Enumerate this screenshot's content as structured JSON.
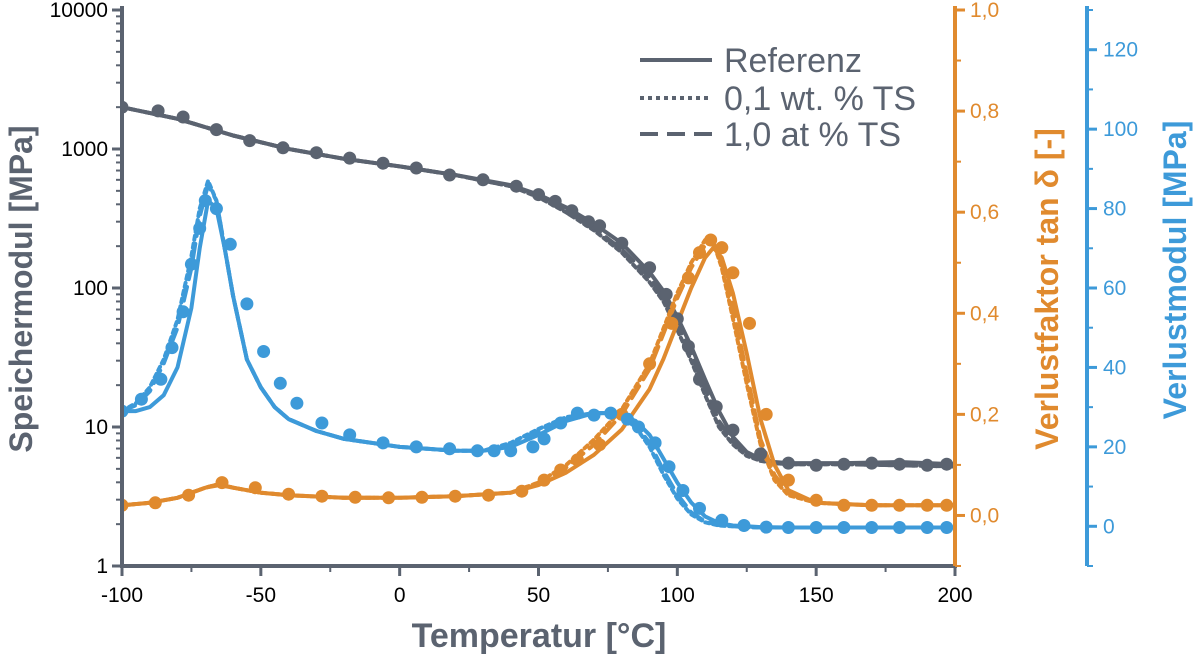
{
  "chart_data": {
    "type": "line",
    "xlabel": "Temperatur [°C]",
    "x_ticks": [
      "-100",
      "-50",
      "0",
      "50",
      "100",
      "150",
      "200"
    ],
    "xlim": [
      -100,
      200
    ],
    "axes": {
      "storage": {
        "label": "Speichermodul [MPa]",
        "scale": "log",
        "ylim": [
          1,
          10000
        ],
        "ticks": [
          "1",
          "10",
          "100",
          "1000",
          "10000"
        ],
        "color": "#5b6370"
      },
      "tan_delta": {
        "label": "Verlustfaktor tan δ [-]",
        "ylim": [
          -0.1,
          1.0
        ],
        "ticks": [
          "0,0",
          "0,2",
          "0,4",
          "0,6",
          "0,8",
          "1,0"
        ],
        "color": "#e08a2e"
      },
      "loss": {
        "label": "Verlustmodul [MPa]",
        "ylim": [
          -10,
          130
        ],
        "ticks": [
          "0",
          "20",
          "40",
          "60",
          "80",
          "100",
          "120"
        ],
        "color": "#3d9ad9"
      }
    },
    "legend": {
      "position": "top-right",
      "entries": [
        {
          "label": "Referenz",
          "style": "solid"
        },
        {
          "label": "0,1 wt. % TS",
          "style": "dotted"
        },
        {
          "label": "1,0 at % TS",
          "style": "dashed"
        }
      ]
    },
    "series": [
      {
        "measure": "Speichermodul",
        "sample": "Referenz",
        "axis": "storage",
        "style": "solid",
        "x": [
          -100,
          -80,
          -60,
          -40,
          -20,
          0,
          20,
          40,
          50,
          60,
          70,
          80,
          90,
          95,
          100,
          105,
          110,
          115,
          120,
          125,
          130,
          135,
          140,
          160,
          180,
          200
        ],
        "y": [
          2000,
          1650,
          1250,
          1000,
          850,
          750,
          650,
          550,
          470,
          380,
          290,
          210,
          130,
          95,
          62,
          38,
          22,
          13,
          8.5,
          6.6,
          5.9,
          5.6,
          5.5,
          5.5,
          5.6,
          5.4
        ]
      },
      {
        "measure": "Speichermodul",
        "sample": "0,1 wt. % TS",
        "axis": "storage",
        "style": "dotted",
        "x": [
          -100,
          -80,
          -60,
          -40,
          -20,
          0,
          20,
          40,
          50,
          60,
          70,
          80,
          90,
          95,
          100,
          105,
          110,
          115,
          120,
          125,
          130,
          135,
          140,
          160,
          180,
          200
        ],
        "y": [
          2000,
          1650,
          1250,
          1000,
          850,
          750,
          650,
          540,
          450,
          350,
          260,
          180,
          110,
          80,
          50,
          30,
          17,
          10,
          7.5,
          6.2,
          5.7,
          5.5,
          5.4,
          5.4,
          5.3,
          5.2
        ]
      },
      {
        "measure": "Speichermodul",
        "sample": "1,0 at % TS",
        "axis": "storage",
        "style": "dashed",
        "x": [
          -100,
          -80,
          -60,
          -40,
          -20,
          0,
          20,
          40,
          50,
          60,
          70,
          80,
          90,
          95,
          100,
          105,
          110,
          115,
          120,
          125,
          130,
          135,
          140,
          160,
          180,
          200
        ],
        "y": [
          2000,
          1650,
          1250,
          1000,
          850,
          750,
          650,
          540,
          460,
          360,
          270,
          190,
          120,
          85,
          55,
          34,
          19,
          11,
          8,
          6.4,
          5.8,
          5.5,
          5.4,
          5.4,
          5.3,
          5.2
        ]
      },
      {
        "measure": "Verlustfaktor tan δ",
        "sample": "Referenz",
        "axis": "tan_delta",
        "style": "solid",
        "x": [
          -100,
          -90,
          -80,
          -75,
          -70,
          -65,
          -60,
          -50,
          -40,
          -20,
          0,
          20,
          40,
          50,
          60,
          70,
          80,
          90,
          95,
          100,
          105,
          110,
          113,
          116,
          120,
          125,
          130,
          135,
          140,
          150,
          170,
          200
        ],
        "y": [
          0.02,
          0.025,
          0.035,
          0.045,
          0.055,
          0.06,
          0.055,
          0.045,
          0.04,
          0.035,
          0.035,
          0.038,
          0.045,
          0.06,
          0.085,
          0.12,
          0.17,
          0.25,
          0.31,
          0.38,
          0.45,
          0.51,
          0.53,
          0.51,
          0.44,
          0.32,
          0.19,
          0.1,
          0.05,
          0.025,
          0.02,
          0.02
        ]
      },
      {
        "measure": "Verlustfaktor tan δ",
        "sample": "0,1 wt. % TS",
        "axis": "tan_delta",
        "style": "dotted",
        "x": [
          -100,
          -90,
          -80,
          -75,
          -70,
          -65,
          -60,
          -50,
          -40,
          -20,
          0,
          20,
          40,
          50,
          60,
          70,
          80,
          90,
          95,
          100,
          105,
          110,
          113,
          116,
          120,
          125,
          130,
          135,
          140,
          150,
          170,
          200
        ],
        "y": [
          0.02,
          0.025,
          0.035,
          0.045,
          0.055,
          0.062,
          0.055,
          0.045,
          0.04,
          0.035,
          0.035,
          0.038,
          0.045,
          0.065,
          0.1,
          0.15,
          0.21,
          0.3,
          0.37,
          0.44,
          0.5,
          0.545,
          0.54,
          0.49,
          0.39,
          0.26,
          0.14,
          0.07,
          0.04,
          0.025,
          0.02,
          0.02
        ]
      },
      {
        "measure": "Verlustfaktor tan δ",
        "sample": "1,0 at % TS",
        "axis": "tan_delta",
        "style": "dashed",
        "x": [
          -100,
          -90,
          -80,
          -75,
          -70,
          -65,
          -60,
          -50,
          -40,
          -20,
          0,
          20,
          40,
          50,
          60,
          70,
          80,
          90,
          95,
          100,
          105,
          110,
          113,
          116,
          120,
          125,
          130,
          135,
          140,
          150,
          170,
          200
        ],
        "y": [
          0.02,
          0.025,
          0.035,
          0.045,
          0.055,
          0.062,
          0.055,
          0.045,
          0.04,
          0.035,
          0.035,
          0.038,
          0.045,
          0.065,
          0.095,
          0.14,
          0.2,
          0.29,
          0.36,
          0.43,
          0.49,
          0.535,
          0.54,
          0.5,
          0.41,
          0.28,
          0.15,
          0.08,
          0.045,
          0.025,
          0.02,
          0.02
        ]
      },
      {
        "measure": "Verlustmodul",
        "sample": "Referenz",
        "axis": "loss",
        "style": "solid",
        "x": [
          -100,
          -95,
          -90,
          -85,
          -80,
          -75,
          -72,
          -69,
          -66,
          -63,
          -60,
          -55,
          -50,
          -45,
          -40,
          -30,
          -20,
          -10,
          0,
          10,
          20,
          30,
          40,
          50,
          60,
          70,
          75,
          80,
          85,
          90,
          95,
          100,
          105,
          110,
          115,
          120,
          125,
          130,
          140,
          150,
          170,
          200
        ],
        "y": [
          29,
          29,
          30,
          33,
          40,
          55,
          70,
          82,
          80,
          70,
          58,
          42,
          35,
          30,
          27,
          24,
          22,
          21,
          20,
          19.5,
          19,
          19,
          20,
          23,
          26.5,
          28.5,
          28.5,
          28,
          26.5,
          23,
          17,
          11,
          6,
          2.5,
          0.8,
          0.2,
          0,
          -0.2,
          -0.3,
          -0.3,
          -0.3,
          -0.3
        ]
      },
      {
        "measure": "Verlustmodul",
        "sample": "0,1 wt. % TS",
        "axis": "loss",
        "style": "dotted",
        "x": [
          -100,
          -95,
          -90,
          -85,
          -80,
          -75,
          -72,
          -69,
          -66,
          -63,
          -60,
          -55,
          -50,
          -45,
          -40,
          -30,
          -20,
          -10,
          0,
          10,
          20,
          30,
          40,
          50,
          60,
          70,
          75,
          80,
          85,
          90,
          95,
          100,
          105,
          110,
          115,
          120,
          125,
          130,
          140,
          150,
          170,
          200
        ],
        "y": [
          29,
          31,
          35,
          42,
          52,
          68,
          80,
          87,
          82,
          70,
          58,
          42,
          35,
          30,
          27,
          24,
          22,
          21,
          20,
          19.5,
          19,
          19,
          21,
          24.5,
          27.5,
          28.5,
          28.5,
          27.5,
          25,
          20,
          13,
          7,
          3,
          1,
          0.2,
          0,
          -0.2,
          -0.3,
          -0.3,
          -0.3,
          -0.3,
          -0.3
        ]
      },
      {
        "measure": "Verlustmodul",
        "sample": "1,0 at % TS",
        "axis": "loss",
        "style": "dashed",
        "x": [
          -100,
          -95,
          -90,
          -85,
          -80,
          -75,
          -72,
          -69,
          -66,
          -63,
          -60,
          -55,
          -50,
          -45,
          -40,
          -30,
          -20,
          -10,
          0,
          10,
          20,
          30,
          40,
          50,
          60,
          70,
          75,
          80,
          85,
          90,
          95,
          100,
          105,
          110,
          115,
          120,
          125,
          130,
          140,
          150,
          170,
          200
        ],
        "y": [
          29,
          30.5,
          34,
          41,
          50,
          65,
          78,
          86,
          82,
          70,
          58,
          42,
          35,
          30,
          27,
          24,
          22,
          21,
          20,
          19.5,
          19,
          19,
          20.5,
          24,
          27,
          28.5,
          28.5,
          27.5,
          25.5,
          21,
          14,
          8,
          3.5,
          1.2,
          0.3,
          0,
          -0.2,
          -0.3,
          -0.3,
          -0.3,
          -0.3,
          -0.3
        ]
      }
    ],
    "markers": [
      {
        "measure": "Speichermodul",
        "axis": "storage",
        "x": [
          -100,
          -87,
          -78,
          -66,
          -54,
          -42,
          -30,
          -18,
          -6,
          6,
          18,
          30,
          42,
          50,
          56,
          62,
          68,
          72,
          80,
          90,
          96,
          100,
          104,
          108,
          114,
          120,
          130,
          140,
          150,
          160,
          170,
          180,
          190,
          197
        ],
        "y": [
          2000,
          1880,
          1700,
          1380,
          1150,
          1020,
          940,
          860,
          790,
          730,
          650,
          600,
          540,
          470,
          420,
          360,
          300,
          280,
          210,
          140,
          90,
          60,
          38,
          22,
          14,
          9.5,
          6.4,
          5.5,
          5.3,
          5.4,
          5.5,
          5.4,
          5.3,
          5.4
        ]
      },
      {
        "measure": "Verlustfaktor tan δ",
        "axis": "tan_delta",
        "x": [
          -100,
          -88,
          -76,
          -64,
          -52,
          -40,
          -28,
          -16,
          -4,
          8,
          20,
          32,
          44,
          52,
          58,
          64,
          72,
          80,
          90,
          98,
          104,
          108,
          112,
          116,
          120,
          126,
          132,
          140,
          150,
          160,
          170,
          180,
          190,
          197
        ],
        "y": [
          0.02,
          0.025,
          0.04,
          0.065,
          0.055,
          0.042,
          0.038,
          0.036,
          0.035,
          0.036,
          0.038,
          0.04,
          0.048,
          0.07,
          0.09,
          0.11,
          0.14,
          0.2,
          0.3,
          0.38,
          0.47,
          0.52,
          0.545,
          0.53,
          0.48,
          0.38,
          0.2,
          0.07,
          0.03,
          0.02,
          0.02,
          0.02,
          0.02,
          0.02
        ]
      },
      {
        "measure": "Verlustmodul",
        "axis": "loss",
        "x": [
          -100,
          -93,
          -86,
          -82,
          -78,
          -75,
          -72,
          -70,
          -66,
          -61,
          -55,
          -49,
          -43,
          -37,
          -28,
          -18,
          -6,
          6,
          18,
          28,
          34,
          40,
          48,
          52,
          58,
          64,
          70,
          76,
          82,
          86,
          92,
          97,
          102,
          108,
          116,
          124,
          132,
          140,
          150,
          160,
          170,
          180,
          190,
          197
        ],
        "y": [
          29,
          32,
          37,
          45,
          54,
          66,
          75,
          82,
          80,
          71,
          56,
          44,
          36,
          31,
          26,
          23,
          21,
          20,
          19.5,
          19,
          19,
          19,
          20,
          22,
          26,
          28.5,
          28,
          28.5,
          27,
          25,
          21,
          15,
          9,
          4.5,
          1.5,
          0.2,
          -0.2,
          -0.3,
          -0.3,
          -0.3,
          -0.3,
          -0.3,
          -0.3,
          -0.3
        ]
      }
    ]
  }
}
